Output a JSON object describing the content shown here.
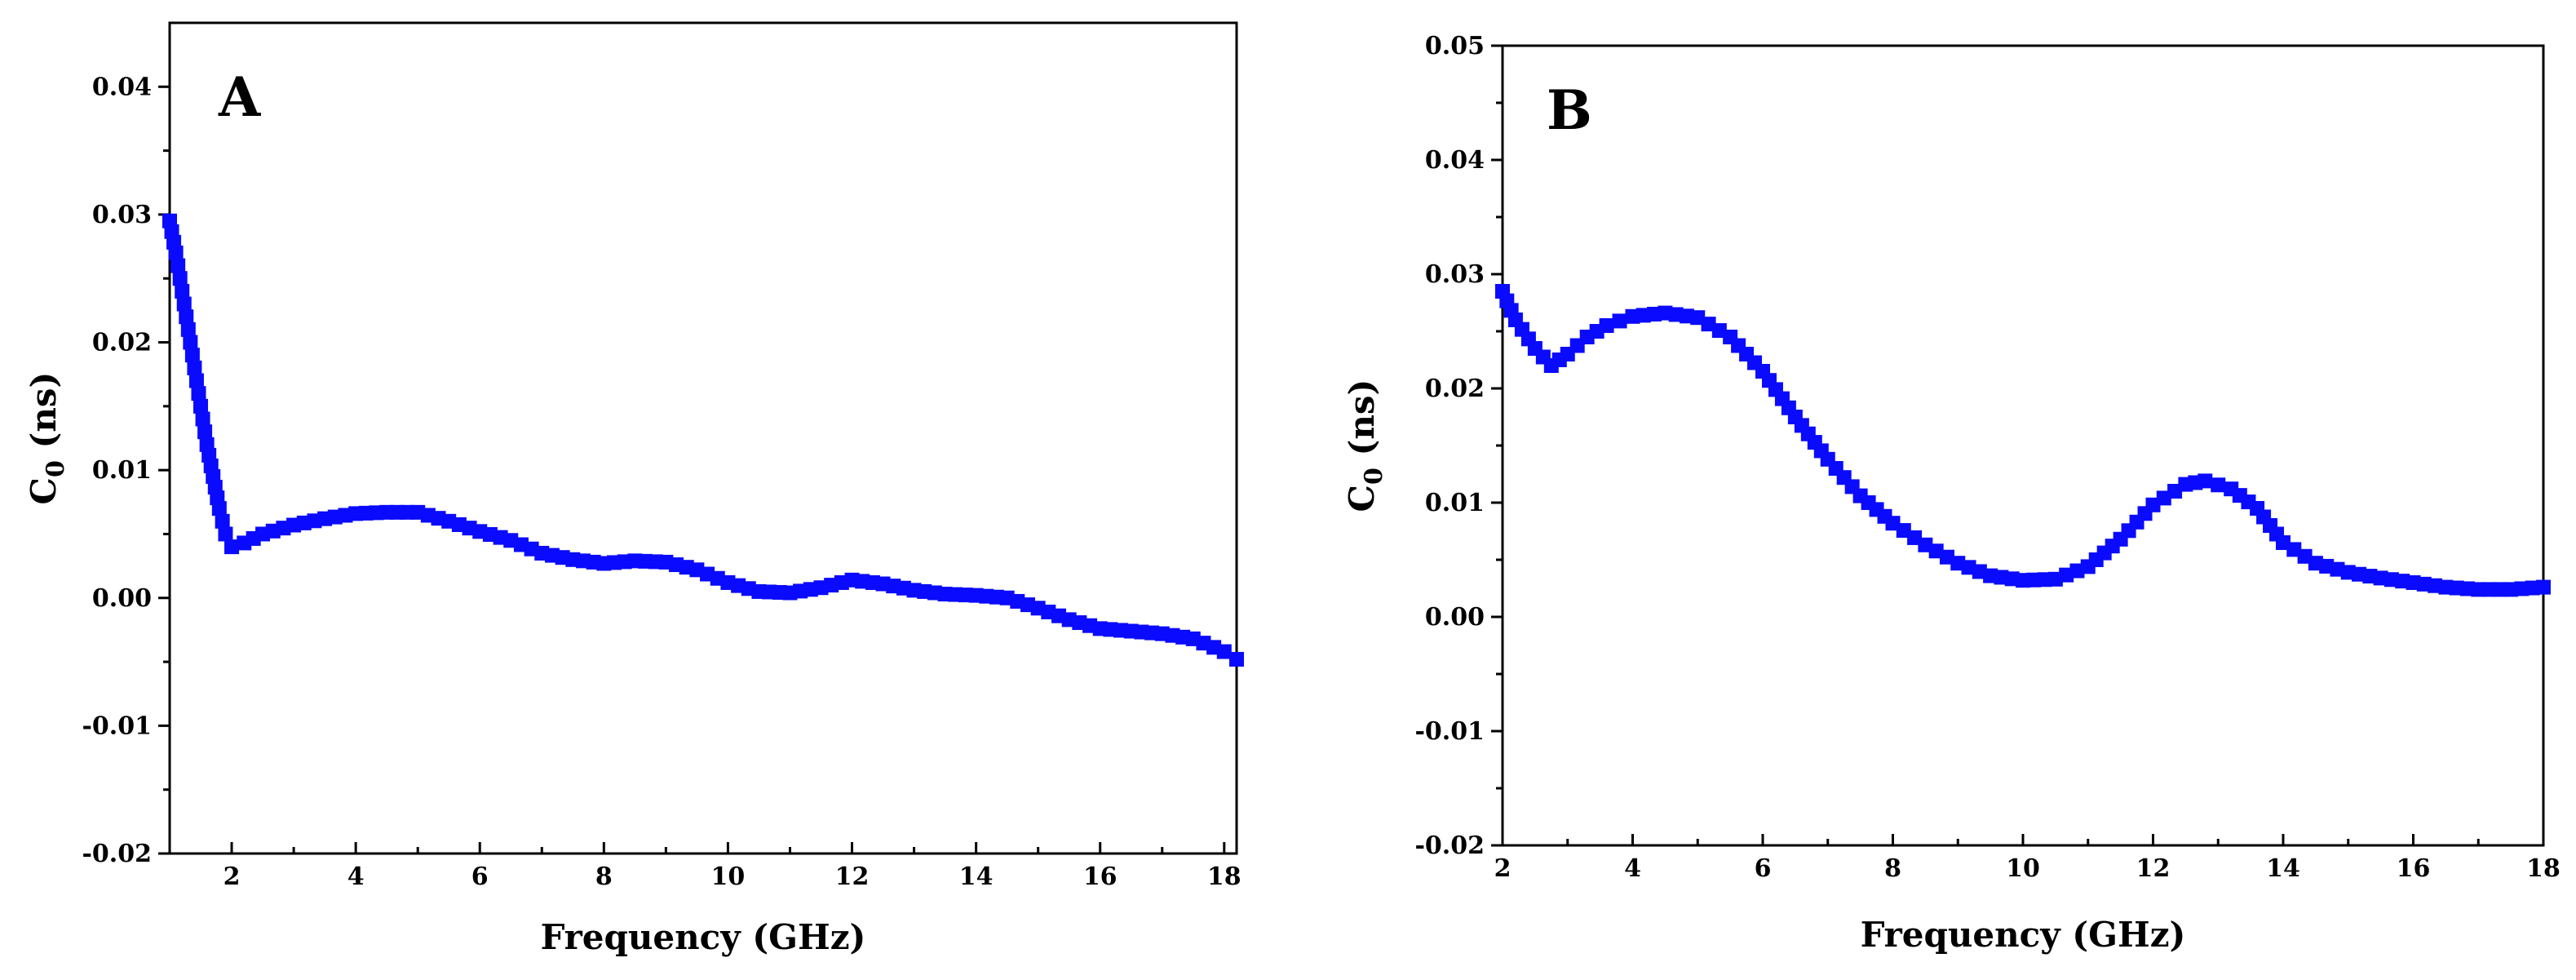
{
  "chart_data": [
    {
      "type": "scatter",
      "panel_label": "A",
      "xlabel": "Frequency (GHz)",
      "ylabel_main": "C",
      "ylabel_sub": "0",
      "ylabel_unit": " (ns)",
      "xlim": [
        1,
        18.2
      ],
      "ylim": [
        -0.02,
        0.045
      ],
      "x_ticks": [
        2,
        4,
        6,
        8,
        10,
        12,
        14,
        16,
        18
      ],
      "x_tick_labels": [
        "2",
        "4",
        "6",
        "8",
        "10",
        "12",
        "14",
        "16",
        "18"
      ],
      "y_ticks": [
        -0.02,
        -0.01,
        0.0,
        0.01,
        0.02,
        0.03,
        0.04
      ],
      "y_tick_labels": [
        "-0.02",
        "-0.01",
        "0.00",
        "0.01",
        "0.02",
        "0.03",
        "0.04"
      ],
      "grid": false,
      "marker_color": "#0a0aff",
      "series": [
        {
          "name": "C0",
          "x": [
            1.0,
            1.1,
            1.2,
            1.3,
            1.4,
            1.5,
            1.6,
            1.7,
            1.8,
            1.9,
            2.0,
            2.2,
            2.5,
            3.0,
            3.5,
            4.0,
            4.5,
            5.0,
            5.5,
            6.0,
            6.5,
            7.0,
            7.5,
            8.0,
            8.5,
            9.0,
            9.5,
            10.0,
            10.5,
            11.0,
            11.5,
            12.0,
            12.5,
            13.0,
            13.5,
            14.0,
            14.5,
            15.0,
            15.5,
            16.0,
            16.5,
            17.0,
            17.5,
            18.0,
            18.2
          ],
          "y": [
            0.0295,
            0.027,
            0.024,
            0.021,
            0.018,
            0.015,
            0.012,
            0.0095,
            0.007,
            0.005,
            0.004,
            0.0043,
            0.005,
            0.0057,
            0.0062,
            0.0066,
            0.0067,
            0.0067,
            0.006,
            0.0052,
            0.0045,
            0.0035,
            0.003,
            0.0027,
            0.0029,
            0.0028,
            0.0022,
            0.0012,
            0.0005,
            0.0004,
            0.0008,
            0.0014,
            0.0011,
            0.0006,
            0.0003,
            0.0002,
            0.0,
            -0.0008,
            -0.0017,
            -0.0024,
            -0.0026,
            -0.0028,
            -0.0032,
            -0.0042,
            -0.0048
          ]
        }
      ]
    },
    {
      "type": "scatter",
      "panel_label": "B",
      "xlabel": "Frequency (GHz)",
      "ylabel_main": "C",
      "ylabel_sub": "0",
      "ylabel_unit": " (ns)",
      "xlim": [
        2,
        18
      ],
      "ylim": [
        -0.02,
        0.05
      ],
      "x_ticks": [
        2,
        4,
        6,
        8,
        10,
        12,
        14,
        16,
        18
      ],
      "x_tick_labels": [
        "2",
        "4",
        "6",
        "8",
        "10",
        "12",
        "14",
        "16",
        "18"
      ],
      "y_ticks": [
        -0.02,
        -0.01,
        0.0,
        0.01,
        0.02,
        0.03,
        0.04,
        0.05
      ],
      "y_tick_labels": [
        "-0.02",
        "-0.01",
        "0.00",
        "0.01",
        "0.02",
        "0.03",
        "0.04",
        "0.05"
      ],
      "grid": false,
      "marker_color": "#0a0aff",
      "series": [
        {
          "name": "C0",
          "x": [
            2.0,
            2.2,
            2.5,
            2.75,
            3.0,
            3.3,
            3.6,
            4.0,
            4.5,
            5.0,
            5.5,
            6.0,
            6.5,
            7.0,
            7.5,
            8.0,
            8.5,
            9.0,
            9.5,
            10.0,
            10.5,
            11.0,
            11.5,
            12.0,
            12.5,
            12.8,
            13.2,
            13.6,
            14.0,
            14.5,
            15.0,
            15.5,
            16.0,
            16.5,
            17.0,
            17.5,
            18.0
          ],
          "y": [
            0.0285,
            0.026,
            0.0235,
            0.022,
            0.023,
            0.0245,
            0.0255,
            0.0263,
            0.0266,
            0.0262,
            0.0245,
            0.0215,
            0.0175,
            0.0138,
            0.0106,
            0.0082,
            0.0063,
            0.0047,
            0.0036,
            0.0032,
            0.0033,
            0.0044,
            0.0068,
            0.0098,
            0.0116,
            0.0119,
            0.0112,
            0.0095,
            0.0065,
            0.0047,
            0.0039,
            0.0034,
            0.003,
            0.0026,
            0.0024,
            0.0024,
            0.0026
          ]
        }
      ]
    }
  ]
}
